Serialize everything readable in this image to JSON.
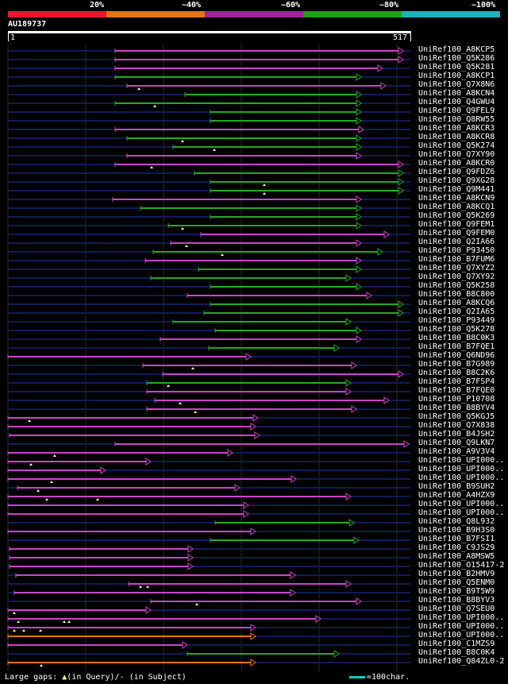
{
  "legend": {
    "labels": [
      "20%",
      "~40%",
      "~60%",
      "~80%",
      "~100%"
    ],
    "colors": [
      "#e8162e",
      "#e37414",
      "#a0249c",
      "#1aa316",
      "#1bb2b8"
    ]
  },
  "query": {
    "id": "AU189737",
    "start": "1",
    "end": "517"
  },
  "colors": {
    "magenta": "#cc44cc",
    "green": "#22aa22",
    "orange": "#ee7711",
    "axis": "#101c56",
    "gap": "#ffff99"
  },
  "hits": [
    {
      "name": "UniRef100_A8KCP5",
      "s": 145,
      "e": 508,
      "c": "m"
    },
    {
      "name": "UniRef100_Q5K286",
      "s": 145,
      "e": 508,
      "c": "m"
    },
    {
      "name": "UniRef100_Q5K281",
      "s": 145,
      "e": 482,
      "c": "m"
    },
    {
      "name": "UniRef100_A8KCP1",
      "s": 145,
      "e": 455,
      "c": "g"
    },
    {
      "name": "UniRef100_Q7X8N6",
      "s": 160,
      "e": 486,
      "c": "m",
      "g": [
        175
      ]
    },
    {
      "name": "UniRef100_A8KCN4",
      "s": 233,
      "e": 455,
      "c": "g"
    },
    {
      "name": "UniRef100_Q4GWU4",
      "s": 145,
      "e": 455,
      "c": "g",
      "g": [
        195
      ]
    },
    {
      "name": "UniRef100_Q9FEL9",
      "s": 265,
      "e": 455,
      "c": "g"
    },
    {
      "name": "UniRef100_Q8RW55",
      "s": 265,
      "e": 455,
      "c": "g"
    },
    {
      "name": "UniRef100_A8KCR3",
      "s": 145,
      "e": 458,
      "c": "m"
    },
    {
      "name": "UniRef100_A8KCR8",
      "s": 160,
      "e": 455,
      "c": "g",
      "g": [
        230
      ]
    },
    {
      "name": "UniRef100_Q5K274",
      "s": 218,
      "e": 455,
      "c": "g",
      "g": [
        270
      ]
    },
    {
      "name": "UniRef100_Q7XY90",
      "s": 160,
      "e": 455,
      "c": "m"
    },
    {
      "name": "UniRef100_A8KCR0",
      "s": 145,
      "e": 508,
      "c": "m",
      "g": [
        191
      ]
    },
    {
      "name": "UniRef100_Q9FDZ6",
      "s": 245,
      "e": 508,
      "c": "g"
    },
    {
      "name": "UniRef100_Q9XG28",
      "s": 265,
      "e": 508,
      "c": "g",
      "g": [
        333
      ]
    },
    {
      "name": "UniRef100_Q9M441",
      "s": 265,
      "e": 508,
      "c": "g",
      "g": [
        333
      ]
    },
    {
      "name": "UniRef100_A8KCN9",
      "s": 142,
      "e": 455,
      "c": "m"
    },
    {
      "name": "UniRef100_A8KCQ1",
      "s": 177,
      "e": 455,
      "c": "g"
    },
    {
      "name": "UniRef100_Q5K269",
      "s": 265,
      "e": 455,
      "c": "g"
    },
    {
      "name": "UniRef100_Q9FEM1",
      "s": 212,
      "e": 455,
      "c": "g",
      "g": [
        230
      ]
    },
    {
      "name": "UniRef100_Q9FEM0",
      "s": 253,
      "e": 490,
      "c": "m"
    },
    {
      "name": "UniRef100_Q2IA66",
      "s": 215,
      "e": 455,
      "c": "m",
      "g": [
        235
      ]
    },
    {
      "name": "UniRef100_P93450",
      "s": 193,
      "e": 482,
      "c": "g",
      "g": [
        280
      ]
    },
    {
      "name": "UniRef100_B7FUM6",
      "s": 183,
      "e": 455,
      "c": "m"
    },
    {
      "name": "UniRef100_Q7XYZ2",
      "s": 250,
      "e": 455,
      "c": "g"
    },
    {
      "name": "UniRef100_Q7XY92",
      "s": 190,
      "e": 442,
      "c": "g"
    },
    {
      "name": "UniRef100_Q5K258",
      "s": 265,
      "e": 455,
      "c": "g"
    },
    {
      "name": "UniRef100_B8C800",
      "s": 236,
      "e": 468,
      "c": "m"
    },
    {
      "name": "UniRef100_A8KCQ6",
      "s": 265,
      "e": 508,
      "c": "g"
    },
    {
      "name": "UniRef100_Q2IA65",
      "s": 257,
      "e": 508,
      "c": "g"
    },
    {
      "name": "UniRef100_P93449",
      "s": 218,
      "e": 442,
      "c": "g"
    },
    {
      "name": "UniRef100_Q5K278",
      "s": 271,
      "e": 455,
      "c": "g"
    },
    {
      "name": "UniRef100_B8C0K3",
      "s": 202,
      "e": 455,
      "c": "m"
    },
    {
      "name": "UniRef100_B7FQE1",
      "s": 263,
      "e": 427,
      "c": "g"
    },
    {
      "name": "UniRef100_Q6ND96",
      "s": 10,
      "e": 316,
      "c": "m"
    },
    {
      "name": "UniRef100_B7G989",
      "s": 180,
      "e": 449,
      "c": "m",
      "g": [
        243
      ]
    },
    {
      "name": "UniRef100_B8C2K6",
      "s": 205,
      "e": 508,
      "c": "m"
    },
    {
      "name": "UniRef100_B7FSP4",
      "s": 185,
      "e": 442,
      "c": "g",
      "g": [
        212
      ]
    },
    {
      "name": "UniRef100_B7FQE0",
      "s": 185,
      "e": 442,
      "c": "m"
    },
    {
      "name": "UniRef100_P10708",
      "s": 195,
      "e": 490,
      "c": "m",
      "g": [
        227
      ]
    },
    {
      "name": "UniRef100_B8BYV4",
      "s": 185,
      "e": 449,
      "c": "m",
      "g": [
        246
      ]
    },
    {
      "name": "UniRef100_Q5KGJ5",
      "s": 10,
      "e": 325,
      "c": "m",
      "g": [
        37
      ]
    },
    {
      "name": "UniRef100_Q7X838",
      "s": 10,
      "e": 322,
      "c": "m"
    },
    {
      "name": "UniRef100_B4JSH2",
      "s": 12,
      "e": 327,
      "c": "m"
    },
    {
      "name": "UniRef100_Q9LKN7",
      "s": 145,
      "e": 515,
      "c": "m"
    },
    {
      "name": "UniRef100_A9V3V4",
      "s": 10,
      "e": 293,
      "c": "m",
      "g": [
        69
      ]
    },
    {
      "name": "UniRef100_UPI000..",
      "s": 10,
      "e": 190,
      "c": "m",
      "g": [
        39
      ]
    },
    {
      "name": "UniRef100_UPI000..",
      "s": 10,
      "e": 133,
      "c": "m"
    },
    {
      "name": "UniRef100_UPI000..",
      "s": 10,
      "e": 373,
      "c": "m",
      "g": [
        65
      ]
    },
    {
      "name": "UniRef100_B9SUH2",
      "s": 22,
      "e": 302,
      "c": "m",
      "g": [
        48
      ]
    },
    {
      "name": "UniRef100_A4HZX9",
      "s": 10,
      "e": 442,
      "c": "m",
      "g": [
        59,
        123
      ]
    },
    {
      "name": "UniRef100_UPI000..",
      "s": 10,
      "e": 313,
      "c": "m"
    },
    {
      "name": "UniRef100_UPI000..",
      "s": 10,
      "e": 313,
      "c": "m"
    },
    {
      "name": "UniRef100_Q8L932",
      "s": 271,
      "e": 446,
      "c": "g"
    },
    {
      "name": "UniRef100_B9H3S0",
      "s": 10,
      "e": 322,
      "c": "m"
    },
    {
      "name": "UniRef100_B7FSI1",
      "s": 265,
      "e": 452,
      "c": "g"
    },
    {
      "name": "UniRef100_C9JS29",
      "s": 12,
      "e": 243,
      "c": "m"
    },
    {
      "name": "UniRef100_A8MSW5",
      "s": 12,
      "e": 243,
      "c": "m"
    },
    {
      "name": "UniRef100_O15417-2",
      "s": 12,
      "e": 243,
      "c": "m"
    },
    {
      "name": "UniRef100_B2HMV9",
      "s": 20,
      "e": 372,
      "c": "m"
    },
    {
      "name": "UniRef100_Q5ENM0",
      "s": 162,
      "e": 442,
      "c": "m",
      "g": [
        177,
        186
      ]
    },
    {
      "name": "UniRef100_B9T5W9",
      "s": 18,
      "e": 372,
      "c": "m"
    },
    {
      "name": "UniRef100_B8BYV3",
      "s": 190,
      "e": 455,
      "c": "m",
      "g": [
        248
      ]
    },
    {
      "name": "UniRef100_Q7SEU0",
      "s": 10,
      "e": 190,
      "c": "m",
      "g": [
        18
      ]
    },
    {
      "name": "UniRef100_UPI000..",
      "s": 10,
      "e": 404,
      "c": "m",
      "g": [
        23,
        81,
        87
      ]
    },
    {
      "name": "UniRef100_UPI000..",
      "s": 10,
      "e": 322,
      "c": "m",
      "g": [
        18,
        30,
        51
      ]
    },
    {
      "name": "UniRef100_UPI000..",
      "s": 10,
      "e": 322,
      "c": "o"
    },
    {
      "name": "UniRef100_C1MZS9",
      "s": 10,
      "e": 236,
      "c": "m"
    },
    {
      "name": "UniRef100_B8C0K4",
      "s": 236,
      "e": 427,
      "c": "g"
    },
    {
      "name": "UniRef100_Q84ZL0-2",
      "s": 10,
      "e": 322,
      "c": "o",
      "g": [
        52
      ]
    }
  ],
  "footer": {
    "gaps_prefix": "Large gaps:",
    "gap_glyph": "▲",
    "gaps_text": "(in Query)/- (in Subject)",
    "scale_text": "=100char."
  }
}
